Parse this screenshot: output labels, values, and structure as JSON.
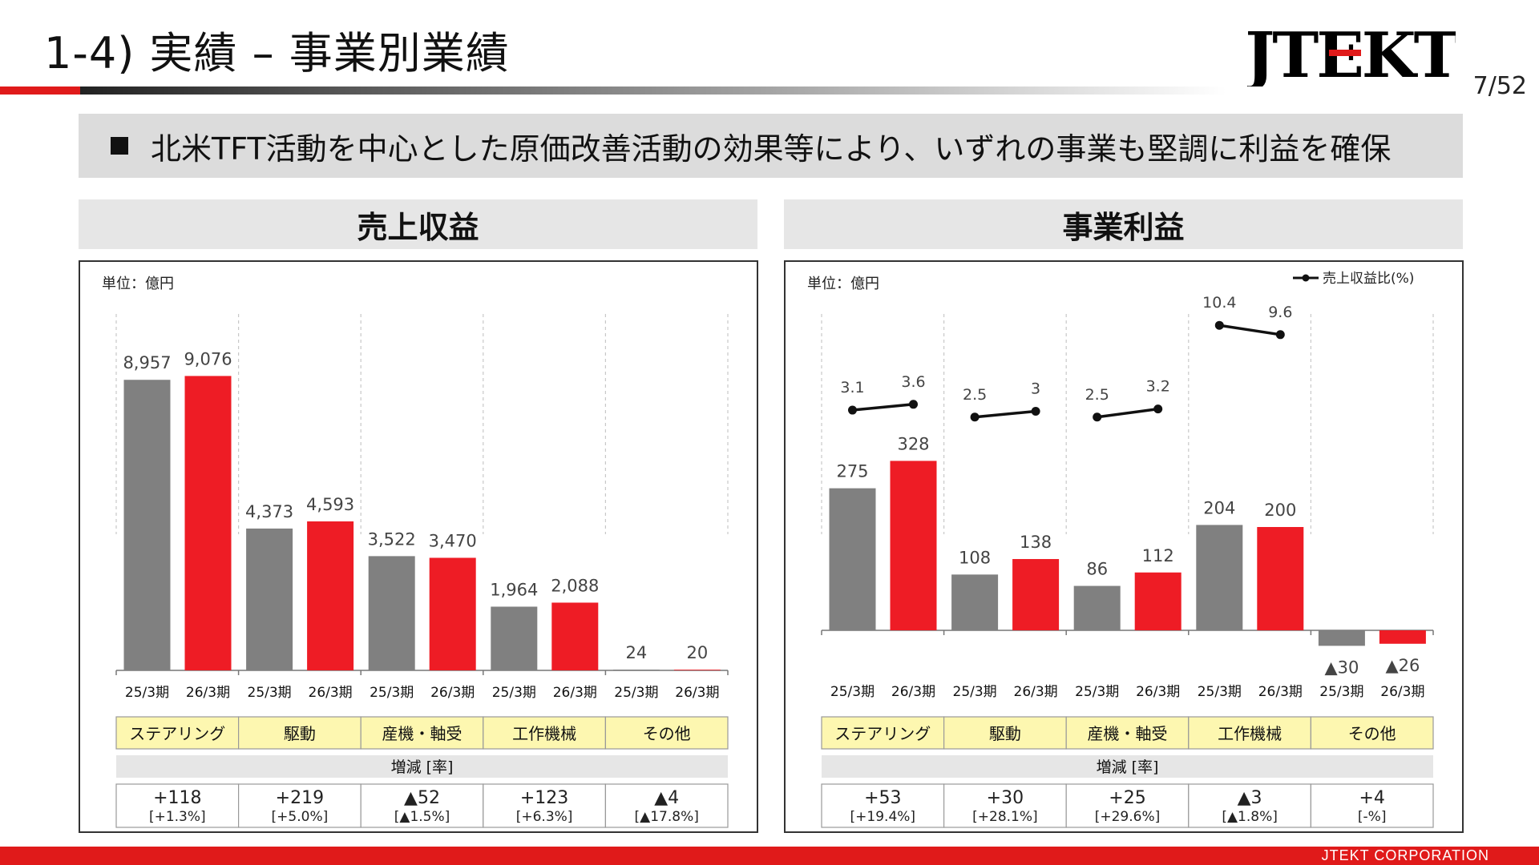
{
  "header": {
    "title": "1-4) 実績 – 事業別業績",
    "page_number": "7/52",
    "logo_text": "JTEKT"
  },
  "banner": {
    "text": "北米TFT活動を中心とした原価改善活動の効果等により、いずれの事業も堅調に利益を確保"
  },
  "footer": {
    "company": "JTEKT CORPORATION"
  },
  "colors": {
    "prev": "#808080",
    "curr": "#ee1c25",
    "segment_bg": "#fdf7b0",
    "accent": "#e01a1a"
  },
  "chart_data": [
    {
      "type": "bar",
      "title": "売上収益",
      "unit": "単位：億円",
      "period_labels": [
        "25/3期",
        "26/3期"
      ],
      "categories": [
        "ステアリング",
        "駆動",
        "産機・軸受",
        "工作機械",
        "その他"
      ],
      "series": [
        {
          "name": "25/3期",
          "values": [
            8957,
            4373,
            3522,
            1964,
            24
          ]
        },
        {
          "name": "26/3期",
          "values": [
            9076,
            4593,
            3470,
            2088,
            20
          ]
        }
      ],
      "value_labels": [
        [
          "8,957",
          "9,076"
        ],
        [
          "4,373",
          "4,593"
        ],
        [
          "3,522",
          "3,470"
        ],
        [
          "1,964",
          "2,088"
        ],
        [
          "24",
          "20"
        ]
      ],
      "change_header": "増減 [率]",
      "change": [
        "+118",
        "+219",
        "▲52",
        "+123",
        "▲4"
      ],
      "change_rate": [
        "[+1.3%]",
        "[+5.0%]",
        "[▲1.5%]",
        "[+6.3%]",
        "[▲17.8%]"
      ],
      "ylim": [
        0,
        10000
      ]
    },
    {
      "type": "bar",
      "title": "事業利益",
      "unit": "単位：億円",
      "legend": "売上収益比(%)",
      "period_labels": [
        "25/3期",
        "26/3期"
      ],
      "categories": [
        "ステアリング",
        "駆動",
        "産機・軸受",
        "工作機械",
        "その他"
      ],
      "series": [
        {
          "name": "25/3期",
          "values": [
            275,
            108,
            86,
            204,
            -30
          ]
        },
        {
          "name": "26/3期",
          "values": [
            328,
            138,
            112,
            200,
            -26
          ]
        }
      ],
      "value_labels": [
        [
          "275",
          "328"
        ],
        [
          "108",
          "138"
        ],
        [
          "86",
          "112"
        ],
        [
          "204",
          "200"
        ],
        [
          "▲30",
          "▲26"
        ]
      ],
      "ratio": [
        [
          3.1,
          3.6
        ],
        [
          2.5,
          3.0
        ],
        [
          2.5,
          3.2
        ],
        [
          10.4,
          9.6
        ]
      ],
      "change_header": "増減 [率]",
      "change": [
        "+53",
        "+30",
        "+25",
        "▲3",
        "+4"
      ],
      "change_rate": [
        "[+19.4%]",
        "[+28.1%]",
        "[+29.6%]",
        "[▲1.8%]",
        "[-%]"
      ]
    }
  ]
}
